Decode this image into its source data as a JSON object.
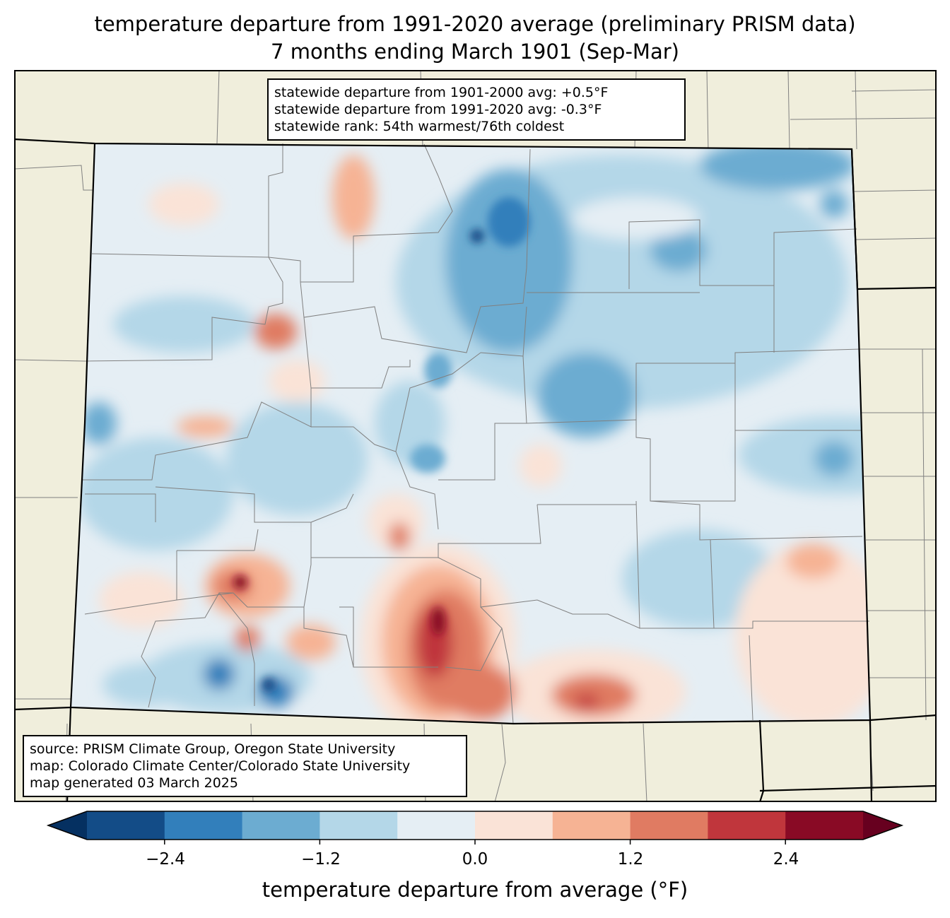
{
  "title": {
    "line1": "temperature departure from 1991-2020 average (preliminary PRISM data)",
    "line2": "7 months ending March 1901 (Sep-Mar)"
  },
  "stats_box": {
    "line1": "statewide departure from 1901-2000 avg: +0.5°F",
    "line2": "statewide departure from 1991-2020 avg: -0.3°F",
    "line3": "statewide rank: 54th warmest/76th coldest"
  },
  "source_box": {
    "line1": "source: PRISM Climate Group, Oregon State University",
    "line2": "map: Colorado Climate Center/Colorado State University",
    "line3": "map generated 03 March 2025"
  },
  "colorbar": {
    "label": "temperature departure from average (°F)",
    "ticks": [
      "−2.4",
      "−1.2",
      "0.0",
      "1.2",
      "2.4"
    ],
    "tick_values": [
      -2.4,
      -1.2,
      0.0,
      1.2,
      2.4
    ],
    "bounds": [
      -3.0,
      -2.4,
      -1.8,
      -1.2,
      -0.6,
      0.0,
      0.6,
      1.2,
      1.8,
      2.4,
      3.0
    ],
    "colors": [
      "#053061",
      "#134c87",
      "#327fbb",
      "#6cacd1",
      "#b4d7e8",
      "#e5eef4",
      "#fae3d7",
      "#f6b394",
      "#e07b62",
      "#c0363c",
      "#890a25",
      "#67001f"
    ]
  },
  "map": {
    "background_color": "#f0eedc",
    "county_line_color": "#808080"
  }
}
